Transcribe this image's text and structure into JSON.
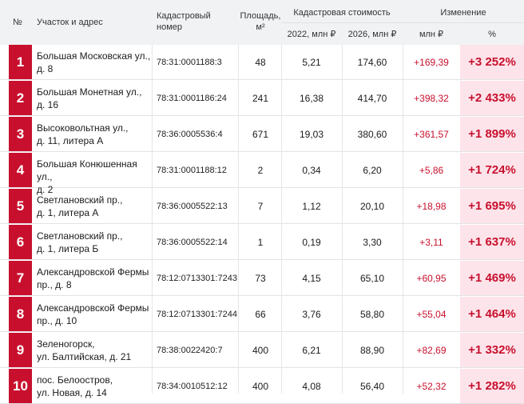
{
  "header": {
    "num": "№",
    "address": "Участок и адрес",
    "cadastral_line1": "Кадастровый",
    "cadastral_line2": "номер",
    "area_line1": "Площадь,",
    "area_line2": "м²",
    "value_group": "Кадастровая стоимость",
    "value_2022": "2022, млн ₽",
    "value_2026": "2026, млн ₽",
    "change_group": "Изменение",
    "change_rub": "млн ₽",
    "change_pct": "%"
  },
  "rows": [
    {
      "n": "1",
      "addr1": "Большая Московская ул.,",
      "addr2": "д. 8",
      "cad": "78:31:0001188:3",
      "area": "48",
      "v2022": "5,21",
      "v2026": "174,60",
      "dm": "+169,39",
      "pct": "+3 252%"
    },
    {
      "n": "2",
      "addr1": "Большая Монетная ул.,",
      "addr2": "д. 16",
      "cad": "78:31:0001186:24",
      "area": "241",
      "v2022": "16,38",
      "v2026": "414,70",
      "dm": "+398,32",
      "pct": "+2 433%"
    },
    {
      "n": "3",
      "addr1": "Высоковольтная ул.,",
      "addr2": "д. 11, литера А",
      "cad": "78:36:0005536:4",
      "area": "671",
      "v2022": "19,03",
      "v2026": "380,60",
      "dm": "+361,57",
      "pct": "+1 899%"
    },
    {
      "n": "4",
      "addr1": "Большая Конюшенная ул.,",
      "addr2": "д. 2",
      "cad": "78:31:0001188:12",
      "area": "2",
      "v2022": "0,34",
      "v2026": "6,20",
      "dm": "+5,86",
      "pct": "+1 724%"
    },
    {
      "n": "5",
      "addr1": "Светлановский пр.,",
      "addr2": "д. 1, литера А",
      "cad": "78:36:0005522:13",
      "area": "7",
      "v2022": "1,12",
      "v2026": "20,10",
      "dm": "+18,98",
      "pct": "+1 695%"
    },
    {
      "n": "6",
      "addr1": "Светлановский пр.,",
      "addr2": "д. 1, литера Б",
      "cad": "78:36:0005522:14",
      "area": "1",
      "v2022": "0,19",
      "v2026": "3,30",
      "dm": "+3,11",
      "pct": "+1 637%"
    },
    {
      "n": "7",
      "addr1": "Александровской Фермы",
      "addr2": "пр., д. 8",
      "cad": "78:12:0713301:7243",
      "area": "73",
      "v2022": "4,15",
      "v2026": "65,10",
      "dm": "+60,95",
      "pct": "+1 469%"
    },
    {
      "n": "8",
      "addr1": "Александровской Фермы",
      "addr2": "пр., д. 10",
      "cad": "78:12:0713301:7244",
      "area": "66",
      "v2022": "3,76",
      "v2026": "58,80",
      "dm": "+55,04",
      "pct": "+1 464%"
    },
    {
      "n": "9",
      "addr1": "Зеленогорск,",
      "addr2": "ул. Балтийская, д. 21",
      "cad": "78:38:0022420:7",
      "area": "400",
      "v2022": "6,21",
      "v2026": "88,90",
      "dm": "+82,69",
      "pct": "+1 332%"
    },
    {
      "n": "10",
      "addr1": "пос. Белоостров,",
      "addr2": "ул. Новая, д. 14",
      "cad": "78:34:0010512:12",
      "area": "400",
      "v2022": "4,08",
      "v2026": "56,40",
      "dm": "+52,32",
      "pct": "+1 282%"
    }
  ]
}
